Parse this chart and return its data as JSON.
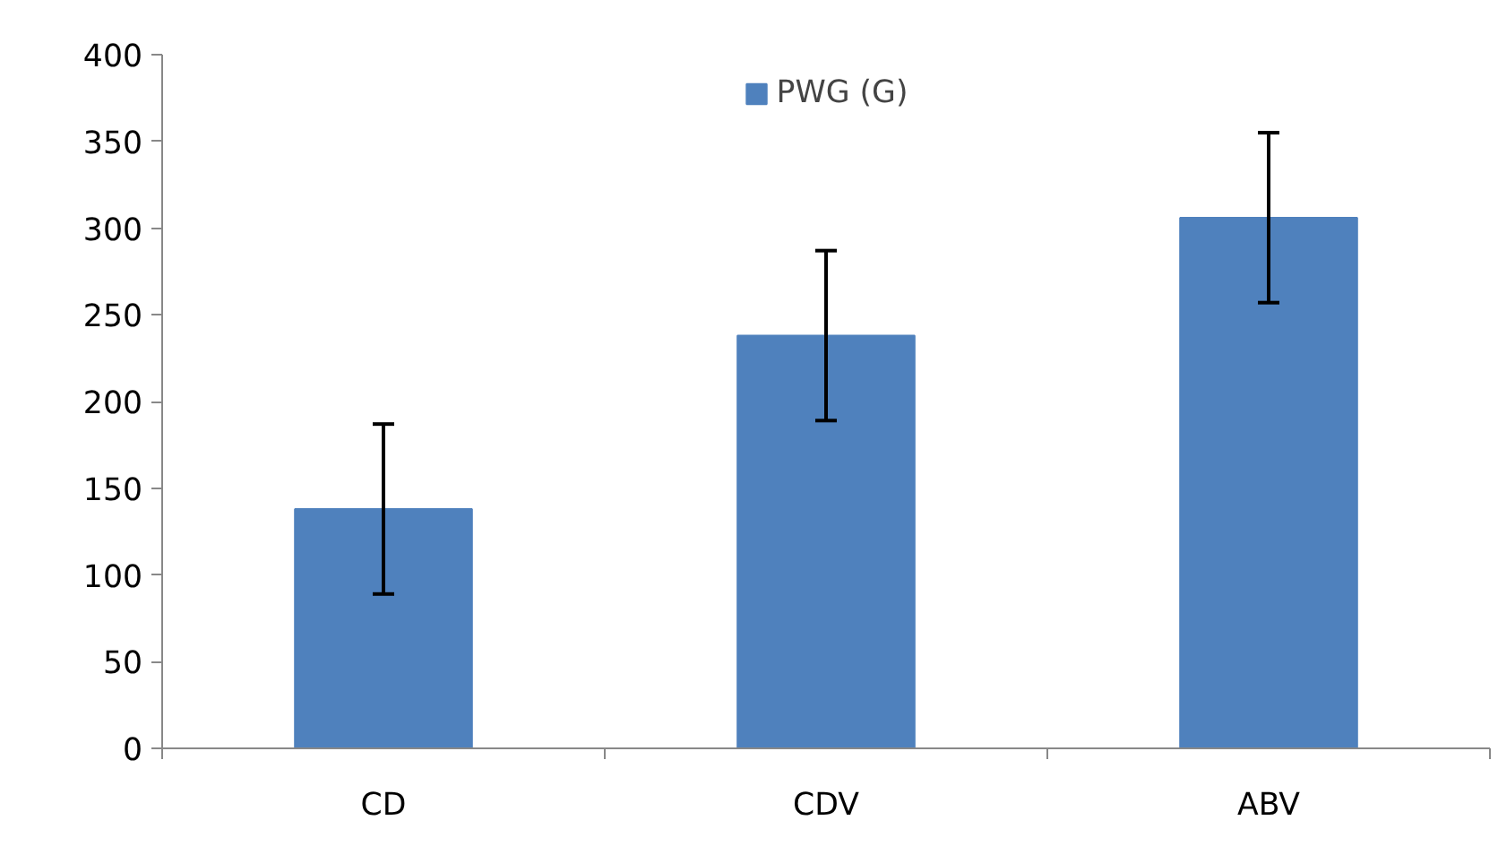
{
  "chart_data": {
    "type": "bar",
    "categories": [
      "CD",
      "CDV",
      "ABV"
    ],
    "series": [
      {
        "name": "PWG (G)",
        "color": "#4f81bd",
        "values": [
          138,
          238,
          306
        ],
        "errors": [
          49,
          49,
          49
        ]
      }
    ],
    "ylim": [
      0,
      400
    ],
    "yticks": [
      0,
      50,
      100,
      150,
      200,
      250,
      300,
      350,
      400
    ],
    "grid": false,
    "legend": "top"
  }
}
